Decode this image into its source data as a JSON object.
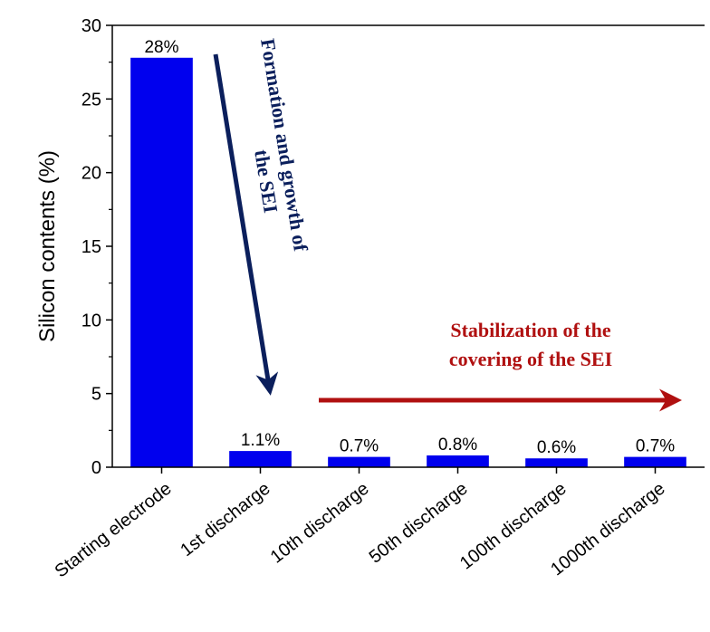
{
  "chart_data": {
    "type": "bar",
    "categories": [
      "Starting electrode",
      "1st discharge",
      "10th discharge",
      "50th discharge",
      "100th discharge",
      "1000th discharge"
    ],
    "values": [
      27.8,
      1.1,
      0.7,
      0.8,
      0.6,
      0.7
    ],
    "data_labels": [
      "28%",
      "1.1%",
      "0.7%",
      "0.8%",
      "0.6%",
      "0.7%"
    ],
    "title": "",
    "xlabel": "",
    "ylabel": "Silicon contents (%)",
    "ylim": [
      0,
      30
    ],
    "yticks": [
      0,
      5,
      10,
      15,
      20,
      25,
      30
    ],
    "grid": false,
    "bar_color": "#0000ee",
    "annotations": [
      {
        "id": "formation",
        "lines": [
          "Formation  and growth of",
          "the SEI"
        ],
        "color": "#0b1f5c"
      },
      {
        "id": "stabilization",
        "lines": [
          "Stabilization of the",
          "covering of the SEI"
        ],
        "color": "#b01010"
      }
    ]
  }
}
